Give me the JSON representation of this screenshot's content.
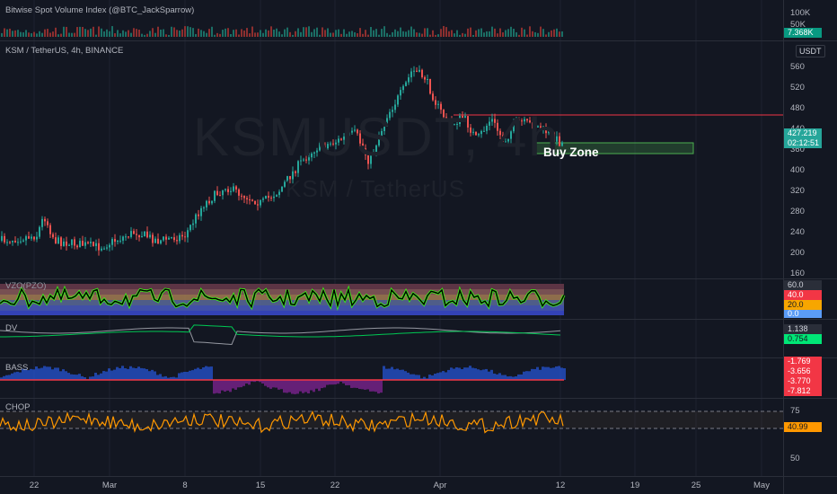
{
  "volume_pane": {
    "label": "Bitwise Spot Volume Index (@BTC_JackSparrow)",
    "ticks": [
      "100K",
      "50K"
    ],
    "badge_value": "7.368K",
    "badge_color": "#089981"
  },
  "main_pane": {
    "label": "KSM / TetherUS, 4h, BINANCE",
    "watermark_symbol": "KSMUSDT, 4h",
    "watermark_name": "KSM / TetherUS",
    "unit": "USDT",
    "ticks": [
      "560",
      "520",
      "480",
      "440",
      "400",
      "360",
      "320",
      "280",
      "240",
      "200",
      "160"
    ],
    "last_price": "427.219",
    "countdown": "02:12:51",
    "last_price_color": "#26a69a",
    "annotation": "Buy Zone",
    "resistance_color": "#f23645",
    "zone_color": "#4caf50"
  },
  "vzo_pane": {
    "label": "VZO(PZO)",
    "ticks": [
      "60.0",
      "40.0",
      "20.0",
      "0.0"
    ],
    "tick_colors": [
      "#d1d4dc",
      "#f23645",
      "#f7a600",
      "#5b9cf6"
    ]
  },
  "dv_pane": {
    "label": "DV",
    "values": [
      "1.138",
      "0.754"
    ],
    "value_colors": [
      "#d1d4dc",
      "#00e676"
    ]
  },
  "bass_pane": {
    "label": "BASS",
    "values": [
      "-1.769",
      "-3.656",
      "-3.770",
      "-7.812"
    ],
    "value_color": "#f23645"
  },
  "chop_pane": {
    "label": "CHOP",
    "ticks": [
      "75",
      "50"
    ],
    "value": "40.99",
    "value_color": "#ff9800"
  },
  "time_axis": {
    "labels": [
      "22",
      "Mar",
      "8",
      "15",
      "22",
      "Apr",
      "12",
      "19",
      "25",
      "May"
    ]
  }
}
